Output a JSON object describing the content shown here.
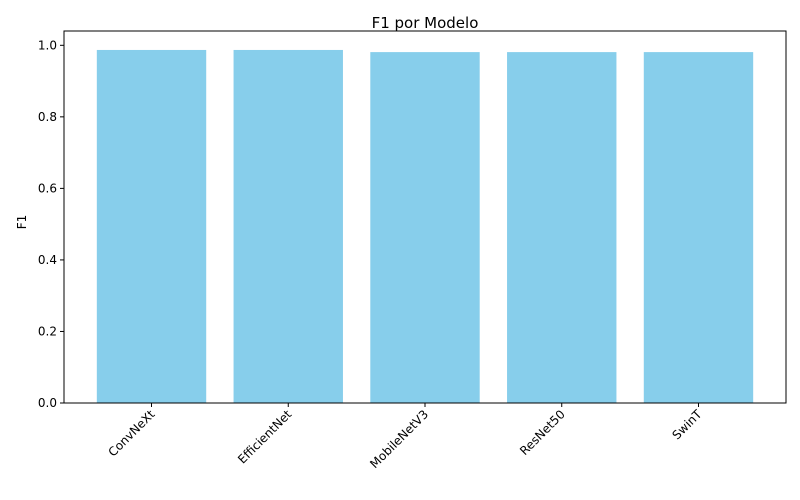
{
  "chart_data": {
    "type": "bar",
    "title": "F1 por Modelo",
    "xlabel": "",
    "ylabel": "F1",
    "categories": [
      "ConvNeXt",
      "EfficientNet",
      "MobileNetV3",
      "ResNet50",
      "SwinT"
    ],
    "values": [
      0.987,
      0.987,
      0.981,
      0.981,
      0.981
    ],
    "ylim": [
      0,
      1.04
    ],
    "yticks": [
      "0.0",
      "0.2",
      "0.4",
      "0.6",
      "0.8",
      "1.0"
    ],
    "grid": false,
    "bar_color": "#87CEEB"
  }
}
